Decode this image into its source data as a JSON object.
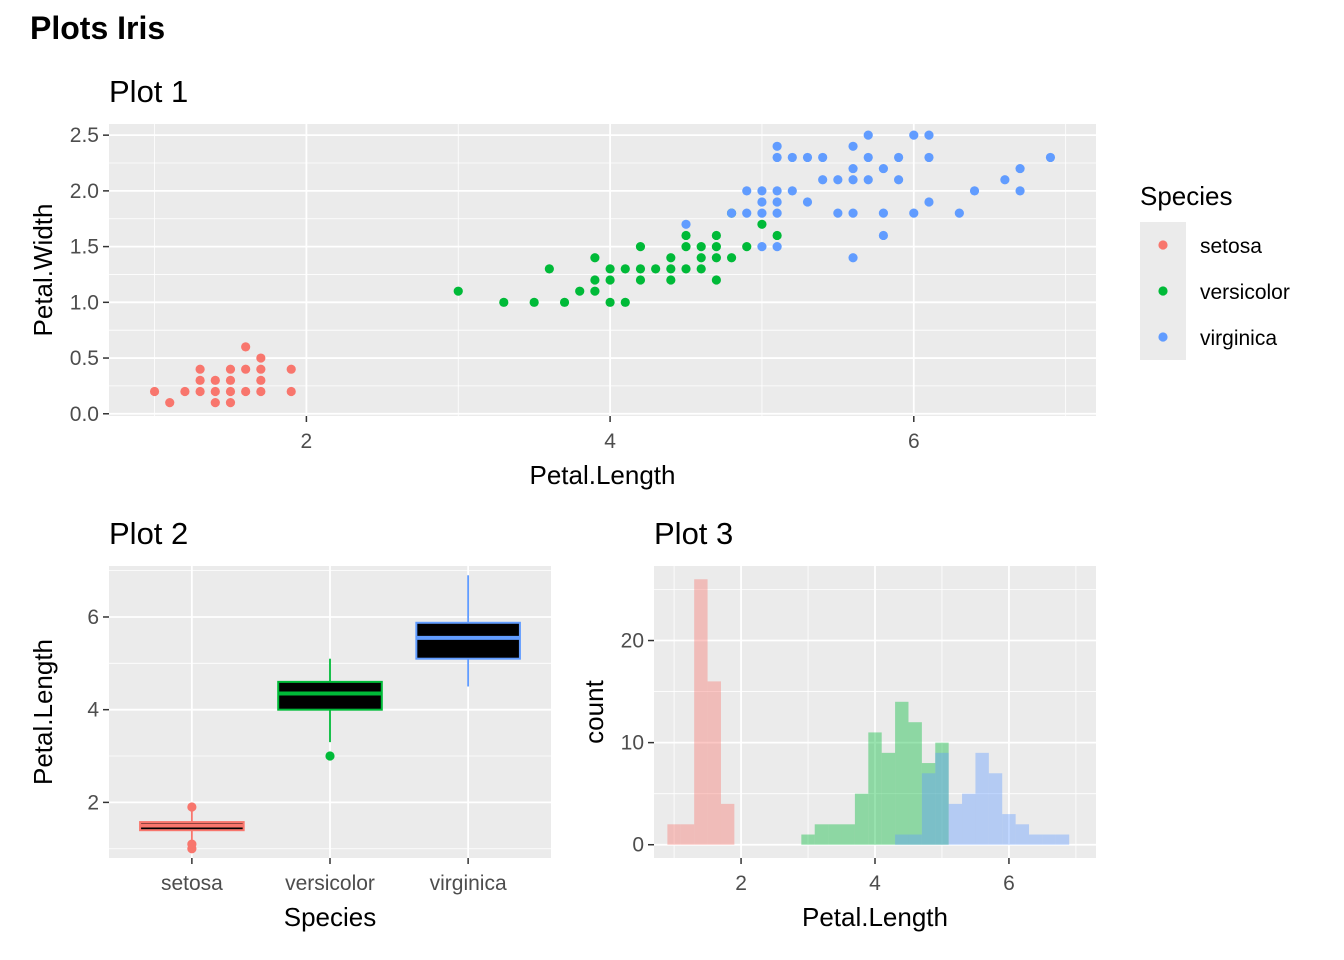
{
  "page": {
    "title": "Plots Iris"
  },
  "colors": {
    "setosa": "#F8766D",
    "versicolor": "#00BA38",
    "virginica": "#619CFF",
    "panel": "#EBEBEB",
    "grid": "#FFFFFF",
    "box_fill": "#000000"
  },
  "legend": {
    "title": "Species",
    "items": [
      {
        "label": "setosa",
        "color": "#F8766D"
      },
      {
        "label": "versicolor",
        "color": "#00BA38"
      },
      {
        "label": "virginica",
        "color": "#619CFF"
      }
    ]
  },
  "chart_data": [
    {
      "id": "plot1",
      "type": "scatter",
      "title": "Plot 1",
      "xlabel": "Petal.Length",
      "ylabel": "Petal.Width",
      "xlim": [
        0.7,
        7.2
      ],
      "ylim": [
        -0.02,
        2.6
      ],
      "xticks": [
        2,
        4,
        6
      ],
      "yticks": [
        0.0,
        0.5,
        1.0,
        1.5,
        2.0,
        2.5
      ],
      "ytick_labels": [
        "0.0",
        "0.5",
        "1.0",
        "1.5",
        "2.0",
        "2.5"
      ],
      "grid": true,
      "legend": "right",
      "series": [
        {
          "name": "setosa",
          "color": "#F8766D",
          "points": [
            [
              1.0,
              0.2
            ],
            [
              1.1,
              0.1
            ],
            [
              1.2,
              0.2
            ],
            [
              1.3,
              0.2
            ],
            [
              1.3,
              0.3
            ],
            [
              1.3,
              0.4
            ],
            [
              1.4,
              0.1
            ],
            [
              1.4,
              0.2
            ],
            [
              1.4,
              0.3
            ],
            [
              1.5,
              0.1
            ],
            [
              1.5,
              0.2
            ],
            [
              1.5,
              0.3
            ],
            [
              1.5,
              0.4
            ],
            [
              1.6,
              0.2
            ],
            [
              1.6,
              0.4
            ],
            [
              1.6,
              0.6
            ],
            [
              1.7,
              0.2
            ],
            [
              1.7,
              0.3
            ],
            [
              1.7,
              0.4
            ],
            [
              1.7,
              0.5
            ],
            [
              1.9,
              0.2
            ],
            [
              1.9,
              0.4
            ]
          ]
        },
        {
          "name": "versicolor",
          "color": "#00BA38",
          "points": [
            [
              3.0,
              1.1
            ],
            [
              3.3,
              1.0
            ],
            [
              3.5,
              1.0
            ],
            [
              3.6,
              1.3
            ],
            [
              3.7,
              1.0
            ],
            [
              3.8,
              1.1
            ],
            [
              3.9,
              1.1
            ],
            [
              3.9,
              1.2
            ],
            [
              3.9,
              1.4
            ],
            [
              4.0,
              1.0
            ],
            [
              4.0,
              1.2
            ],
            [
              4.0,
              1.3
            ],
            [
              4.1,
              1.0
            ],
            [
              4.1,
              1.3
            ],
            [
              4.2,
              1.2
            ],
            [
              4.2,
              1.3
            ],
            [
              4.2,
              1.5
            ],
            [
              4.3,
              1.3
            ],
            [
              4.4,
              1.2
            ],
            [
              4.4,
              1.3
            ],
            [
              4.4,
              1.4
            ],
            [
              4.5,
              1.3
            ],
            [
              4.5,
              1.5
            ],
            [
              4.5,
              1.6
            ],
            [
              4.6,
              1.3
            ],
            [
              4.6,
              1.4
            ],
            [
              4.6,
              1.5
            ],
            [
              4.7,
              1.2
            ],
            [
              4.7,
              1.4
            ],
            [
              4.7,
              1.5
            ],
            [
              4.7,
              1.6
            ],
            [
              4.8,
              1.4
            ],
            [
              4.8,
              1.8
            ],
            [
              4.9,
              1.5
            ],
            [
              5.0,
              1.7
            ],
            [
              5.1,
              1.6
            ]
          ]
        },
        {
          "name": "virginica",
          "color": "#619CFF",
          "points": [
            [
              4.5,
              1.7
            ],
            [
              4.8,
              1.8
            ],
            [
              4.9,
              1.8
            ],
            [
              4.9,
              2.0
            ],
            [
              5.0,
              1.5
            ],
            [
              5.0,
              1.8
            ],
            [
              5.0,
              1.9
            ],
            [
              5.0,
              2.0
            ],
            [
              5.1,
              1.5
            ],
            [
              5.1,
              1.8
            ],
            [
              5.1,
              1.9
            ],
            [
              5.1,
              2.0
            ],
            [
              5.1,
              2.3
            ],
            [
              5.1,
              2.4
            ],
            [
              5.2,
              2.0
            ],
            [
              5.2,
              2.3
            ],
            [
              5.3,
              1.9
            ],
            [
              5.3,
              2.3
            ],
            [
              5.4,
              2.1
            ],
            [
              5.4,
              2.3
            ],
            [
              5.5,
              1.8
            ],
            [
              5.5,
              2.1
            ],
            [
              5.6,
              1.4
            ],
            [
              5.6,
              1.8
            ],
            [
              5.6,
              2.1
            ],
            [
              5.6,
              2.2
            ],
            [
              5.6,
              2.4
            ],
            [
              5.7,
              2.1
            ],
            [
              5.7,
              2.3
            ],
            [
              5.7,
              2.5
            ],
            [
              5.8,
              1.6
            ],
            [
              5.8,
              1.8
            ],
            [
              5.8,
              2.2
            ],
            [
              5.9,
              2.1
            ],
            [
              5.9,
              2.3
            ],
            [
              6.0,
              1.8
            ],
            [
              6.0,
              2.5
            ],
            [
              6.1,
              1.9
            ],
            [
              6.1,
              2.3
            ],
            [
              6.1,
              2.5
            ],
            [
              6.3,
              1.8
            ],
            [
              6.4,
              2.0
            ],
            [
              6.6,
              2.1
            ],
            [
              6.7,
              2.0
            ],
            [
              6.7,
              2.2
            ],
            [
              6.9,
              2.3
            ]
          ]
        }
      ]
    },
    {
      "id": "plot2",
      "type": "box",
      "title": "Plot 2",
      "xlabel": "Species",
      "ylabel": "Petal.Length",
      "categories": [
        "setosa",
        "versicolor",
        "virginica"
      ],
      "ylim": [
        0.8,
        7.1
      ],
      "yticks": [
        2,
        4,
        6
      ],
      "grid": true,
      "boxes": [
        {
          "name": "setosa",
          "color": "#F8766D",
          "min": 1.0,
          "q1": 1.4,
          "median": 1.5,
          "q3": 1.575,
          "max": 1.9,
          "outliers": [
            1.0,
            1.1,
            1.9
          ]
        },
        {
          "name": "versicolor",
          "color": "#00BA38",
          "min": 3.3,
          "q1": 4.0,
          "median": 4.35,
          "q3": 4.6,
          "max": 5.1,
          "outliers": [
            3.0
          ]
        },
        {
          "name": "virginica",
          "color": "#619CFF",
          "min": 4.5,
          "q1": 5.1,
          "median": 5.55,
          "q3": 5.875,
          "max": 6.9,
          "outliers": []
        }
      ]
    },
    {
      "id": "plot3",
      "type": "histogram",
      "title": "Plot 3",
      "xlabel": "Petal.Length",
      "ylabel": "count",
      "xlim": [
        0.7,
        7.3
      ],
      "ylim": [
        -1.3,
        27.3
      ],
      "xticks": [
        2,
        4,
        6
      ],
      "yticks": [
        0,
        10,
        20
      ],
      "grid": true,
      "bin_width": 0.2,
      "series": [
        {
          "name": "setosa",
          "color": "#F8766D",
          "bins": [
            {
              "x": 1.0,
              "count": 2
            },
            {
              "x": 1.2,
              "count": 2
            },
            {
              "x": 1.4,
              "count": 26
            },
            {
              "x": 1.6,
              "count": 16
            },
            {
              "x": 1.8,
              "count": 4
            }
          ]
        },
        {
          "name": "versicolor",
          "color": "#00BA38",
          "bins": [
            {
              "x": 3.0,
              "count": 1
            },
            {
              "x": 3.2,
              "count": 2
            },
            {
              "x": 3.4,
              "count": 2
            },
            {
              "x": 3.6,
              "count": 2
            },
            {
              "x": 3.8,
              "count": 5
            },
            {
              "x": 4.0,
              "count": 11
            },
            {
              "x": 4.2,
              "count": 9
            },
            {
              "x": 4.4,
              "count": 14
            },
            {
              "x": 4.6,
              "count": 12
            },
            {
              "x": 4.8,
              "count": 8
            },
            {
              "x": 5.0,
              "count": 10
            }
          ]
        },
        {
          "name": "virginica",
          "color": "#619CFF",
          "bins": [
            {
              "x": 4.4,
              "count": 1
            },
            {
              "x": 4.6,
              "count": 1
            },
            {
              "x": 4.8,
              "count": 7
            },
            {
              "x": 5.0,
              "count": 9
            },
            {
              "x": 5.2,
              "count": 4
            },
            {
              "x": 5.4,
              "count": 5
            },
            {
              "x": 5.6,
              "count": 9
            },
            {
              "x": 5.8,
              "count": 7
            },
            {
              "x": 6.0,
              "count": 3
            },
            {
              "x": 6.2,
              "count": 2
            },
            {
              "x": 6.4,
              "count": 1
            },
            {
              "x": 6.6,
              "count": 1
            },
            {
              "x": 6.8,
              "count": 1
            }
          ]
        }
      ]
    }
  ]
}
